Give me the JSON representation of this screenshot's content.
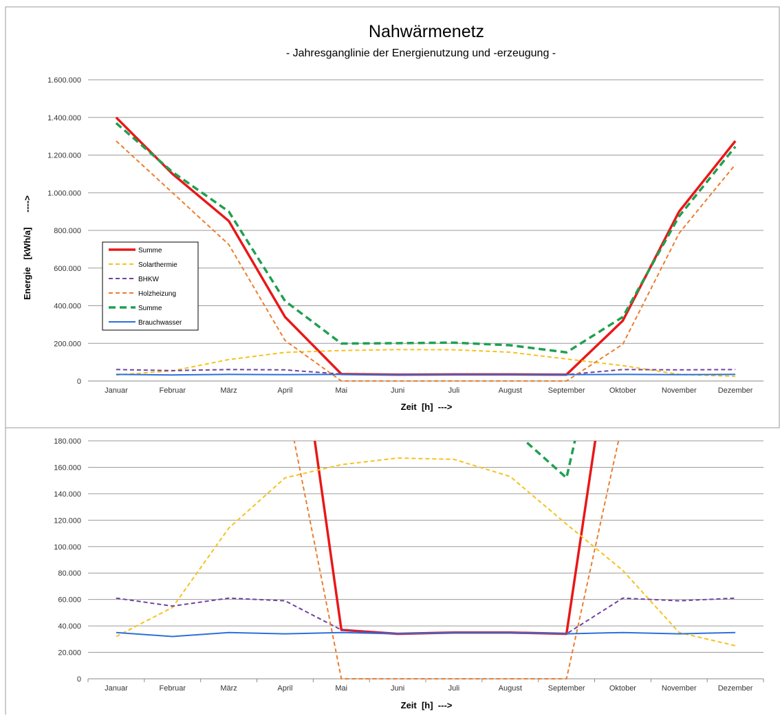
{
  "chart_data": [
    {
      "type": "line",
      "title": "Nahwärmenetz",
      "subtitle": "- Jahresganglinie der Energienutzung und -erzeugung -",
      "xlabel": "Zeit  [h]  --->",
      "ylabel": "Energie   [kWh/a]      ---->",
      "ylim": [
        0,
        1600000
      ],
      "yticks": [
        0,
        200000,
        400000,
        600000,
        800000,
        1000000,
        1200000,
        1400000,
        1600000
      ],
      "ytick_labels": [
        "0",
        "200.000",
        "400.000",
        "600.000",
        "800.000",
        "1.000.000",
        "1.200.000",
        "1.400.000",
        "1.600.000"
      ],
      "grid": true,
      "legend_position": "left",
      "categories": [
        "Januar",
        "Februar",
        "März",
        "April",
        "Mai",
        "Juni",
        "Juli",
        "August",
        "September",
        "Oktober",
        "November",
        "Dezember"
      ],
      "series": [
        {
          "name": "Summe",
          "color": "#e81818",
          "style": "solid",
          "width": 3.5,
          "values": [
            1400000,
            1100000,
            850000,
            340000,
            37000,
            34000,
            35000,
            35000,
            34000,
            320000,
            900000,
            1275000
          ]
        },
        {
          "name": "Solarthermie",
          "color": "#f5c21b",
          "style": "dash",
          "width": 2,
          "values": [
            32000,
            54000,
            114000,
            152000,
            162000,
            167000,
            166000,
            153000,
            117000,
            82000,
            35000,
            25000
          ]
        },
        {
          "name": "BHKW",
          "color": "#7040a0",
          "style": "dash",
          "width": 2,
          "values": [
            61000,
            55000,
            61000,
            59000,
            37000,
            34000,
            35000,
            35000,
            34000,
            61000,
            59000,
            61000
          ]
        },
        {
          "name": "Holzheizung",
          "color": "#ec7c2c",
          "style": "dash",
          "width": 2,
          "values": [
            1275000,
            1000000,
            725000,
            215000,
            0,
            0,
            0,
            0,
            0,
            195000,
            785000,
            1150000
          ]
        },
        {
          "name": "Summe",
          "color": "#1fa050",
          "style": "dash",
          "width": 3.5,
          "values": [
            1370000,
            1110000,
            900000,
            425000,
            199000,
            201000,
            204000,
            190000,
            152000,
            340000,
            875000,
            1245000
          ]
        },
        {
          "name": "Brauchwasser",
          "color": "#2a6fdb",
          "style": "solid",
          "width": 2,
          "values": [
            35000,
            32000,
            35000,
            34000,
            35000,
            34000,
            35000,
            35000,
            34000,
            35000,
            34000,
            35000
          ]
        }
      ]
    },
    {
      "type": "line",
      "title": "",
      "xlabel": "Zeit  [h]  --->",
      "ylabel": "",
      "ylim": [
        0,
        180000
      ],
      "yticks": [
        0,
        20000,
        40000,
        60000,
        80000,
        100000,
        120000,
        140000,
        160000,
        180000
      ],
      "ytick_labels": [
        "0",
        "20.000",
        "40.000",
        "60.000",
        "80.000",
        "100.000",
        "120.000",
        "140.000",
        "160.000",
        "180.000"
      ],
      "grid": true,
      "categories": [
        "Januar",
        "Februar",
        "März",
        "April",
        "Mai",
        "Juni",
        "Juli",
        "August",
        "September",
        "Oktober",
        "November",
        "Dezember"
      ],
      "series_ref": "same as chart 1"
    }
  ]
}
